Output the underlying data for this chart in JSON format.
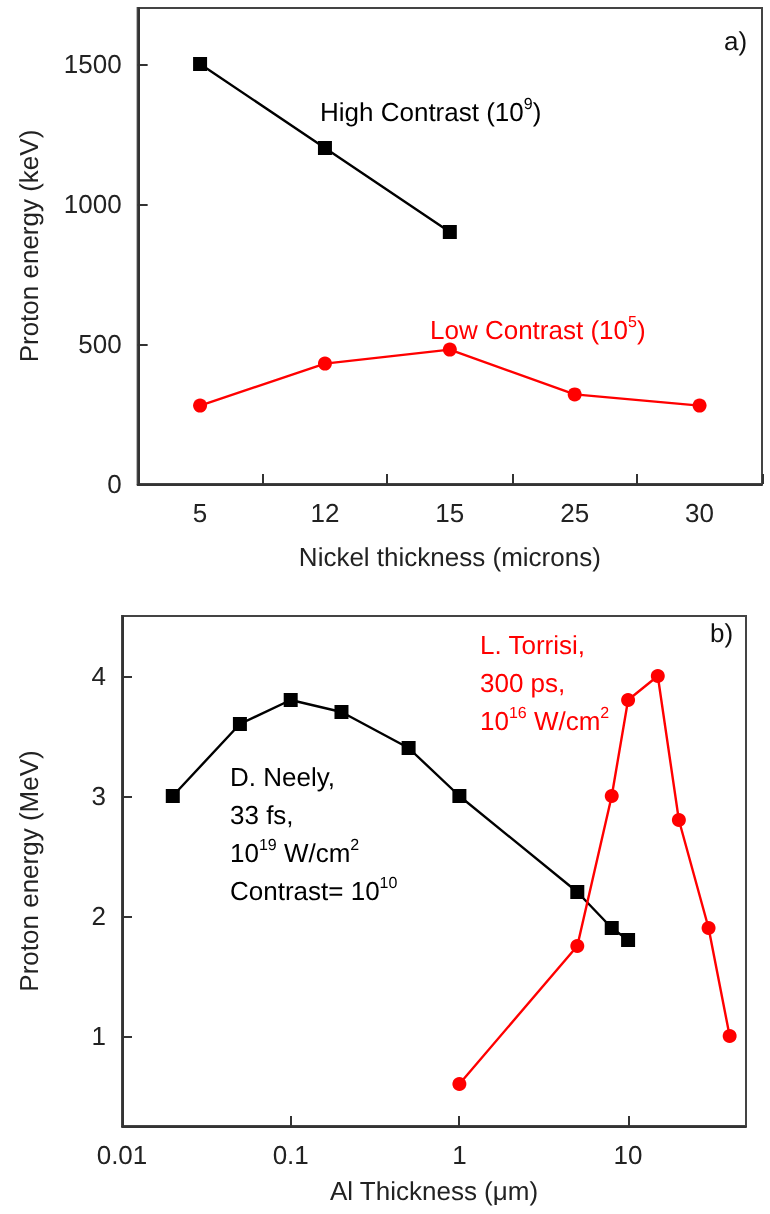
{
  "chart_data": [
    {
      "type": "line",
      "xlabel": "Nickel thickness (microns)",
      "ylabel": "Proton energy (keV)",
      "categories": [
        "5",
        "12",
        "15",
        "25",
        "30"
      ],
      "ylim": [
        0,
        1700
      ],
      "yticks": [
        0,
        500,
        1000,
        1500
      ],
      "grid": false,
      "legend": false,
      "annotations": [
        "a)"
      ],
      "series": [
        {
          "name": "High Contrast (10$^{9}$)",
          "color": "#000000",
          "marker": "square",
          "values": [
            1500,
            1200,
            900,
            null,
            null
          ]
        },
        {
          "name": "Low Contrast (10$^{5}$)",
          "color": "#ff0000",
          "marker": "circle",
          "values": [
            280,
            430,
            480,
            320,
            280
          ]
        }
      ]
    },
    {
      "type": "line",
      "xlabel": "Al Thickness (μm)",
      "ylabel": "Proton energy (MeV)",
      "log": "x",
      "xlim": [
        0.01,
        50
      ],
      "xticks": [
        0.01,
        0.1,
        1,
        10
      ],
      "ylim": [
        0.25,
        4.5
      ],
      "yticks": [
        1,
        2,
        3,
        4
      ],
      "grid": false,
      "legend": false,
      "annotations": [
        "b)"
      ],
      "series": [
        {
          "name": "D. Neely,\n33 fs,\n10$^{19}$ W/cm$^{2}$\nContrast= 10$^{10}$",
          "color": "#000000",
          "marker": "square",
          "x": [
            0.02,
            0.05,
            0.1,
            0.2,
            0.5,
            1,
            5,
            8,
            10
          ],
          "values": [
            3,
            3.6,
            3.8,
            3.7,
            3.4,
            3,
            2.2,
            1.9,
            1.8
          ]
        },
        {
          "name": "L. Torrisi,\n300 ps,\n10$^{16}$ W/cm$^{2}$",
          "color": "#ff0000",
          "marker": "circle",
          "x": [
            1,
            5,
            8,
            10,
            15,
            20,
            30,
            40
          ],
          "values": [
            0.6,
            1.75,
            3,
            3.8,
            4,
            2.8,
            1.9,
            1
          ]
        }
      ]
    }
  ]
}
